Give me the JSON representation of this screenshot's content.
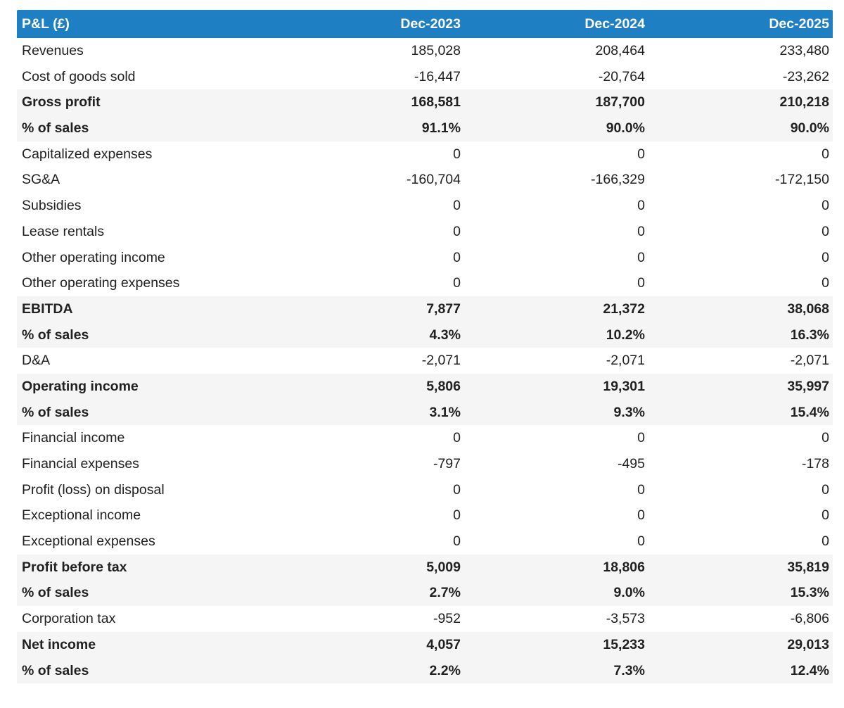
{
  "colors": {
    "header_bg": "#1e7fc3",
    "header_text": "#ffffff",
    "subtotal_row_bg": "#f5f5f5",
    "body_text": "#212121",
    "page_bg": "#ffffff"
  },
  "chart_data": {
    "type": "table",
    "title": "P&L (£)",
    "columns": [
      "Dec-2023",
      "Dec-2024",
      "Dec-2025"
    ],
    "rows": [
      {
        "label": "Revenues",
        "values": [
          "185,028",
          "208,464",
          "233,480"
        ],
        "bold": false
      },
      {
        "label": "Cost of goods sold",
        "values": [
          "-16,447",
          "-20,764",
          "-23,262"
        ],
        "bold": false
      },
      {
        "label": "Gross profit",
        "values": [
          "168,581",
          "187,700",
          "210,218"
        ],
        "bold": true
      },
      {
        "label": "% of sales",
        "values": [
          "91.1%",
          "90.0%",
          "90.0%"
        ],
        "bold": true
      },
      {
        "label": "Capitalized expenses",
        "values": [
          "0",
          "0",
          "0"
        ],
        "bold": false
      },
      {
        "label": "SG&A",
        "values": [
          "-160,704",
          "-166,329",
          "-172,150"
        ],
        "bold": false
      },
      {
        "label": "Subsidies",
        "values": [
          "0",
          "0",
          "0"
        ],
        "bold": false
      },
      {
        "label": "Lease rentals",
        "values": [
          "0",
          "0",
          "0"
        ],
        "bold": false
      },
      {
        "label": "Other operating income",
        "values": [
          "0",
          "0",
          "0"
        ],
        "bold": false
      },
      {
        "label": "Other operating expenses",
        "values": [
          "0",
          "0",
          "0"
        ],
        "bold": false
      },
      {
        "label": "EBITDA",
        "values": [
          "7,877",
          "21,372",
          "38,068"
        ],
        "bold": true
      },
      {
        "label": "% of sales",
        "values": [
          "4.3%",
          "10.2%",
          "16.3%"
        ],
        "bold": true
      },
      {
        "label": "D&A",
        "values": [
          "-2,071",
          "-2,071",
          "-2,071"
        ],
        "bold": false
      },
      {
        "label": "Operating income",
        "values": [
          "5,806",
          "19,301",
          "35,997"
        ],
        "bold": true
      },
      {
        "label": "% of sales",
        "values": [
          "3.1%",
          "9.3%",
          "15.4%"
        ],
        "bold": true
      },
      {
        "label": "Financial income",
        "values": [
          "0",
          "0",
          "0"
        ],
        "bold": false
      },
      {
        "label": "Financial expenses",
        "values": [
          "-797",
          "-495",
          "-178"
        ],
        "bold": false
      },
      {
        "label": "Profit (loss) on disposal",
        "values": [
          "0",
          "0",
          "0"
        ],
        "bold": false
      },
      {
        "label": "Exceptional income",
        "values": [
          "0",
          "0",
          "0"
        ],
        "bold": false
      },
      {
        "label": "Exceptional expenses",
        "values": [
          "0",
          "0",
          "0"
        ],
        "bold": false
      },
      {
        "label": "Profit before tax",
        "values": [
          "5,009",
          "18,806",
          "35,819"
        ],
        "bold": true
      },
      {
        "label": "% of sales",
        "values": [
          "2.7%",
          "9.0%",
          "15.3%"
        ],
        "bold": true
      },
      {
        "label": "Corporation tax",
        "values": [
          "-952",
          "-3,573",
          "-6,806"
        ],
        "bold": false
      },
      {
        "label": "Net income",
        "values": [
          "4,057",
          "15,233",
          "29,013"
        ],
        "bold": true
      },
      {
        "label": "% of sales",
        "values": [
          "2.2%",
          "7.3%",
          "12.4%"
        ],
        "bold": true
      }
    ]
  }
}
